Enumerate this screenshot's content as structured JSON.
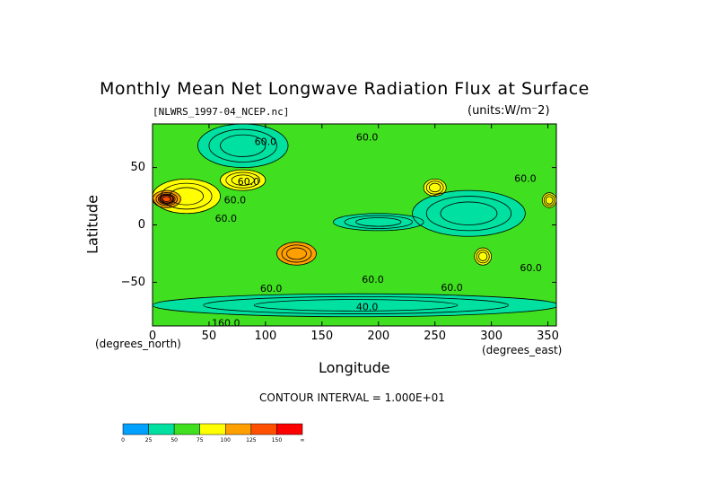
{
  "chart_data": {
    "type": "heatmap",
    "title": "Monthly Mean Net Longwave Radiation Flux at Surface",
    "subtitle_file": "[NLWRS_1997-04_NCEP.nc]",
    "units": "(units:W/m^2)",
    "units_display": "(units:W/m⁻2)",
    "xlabel": "Longitude",
    "ylabel": "Latitude",
    "x_unit_label": "(degrees_east)",
    "y_unit_label": "(degrees_north)",
    "xlim": [
      0,
      357.5
    ],
    "ylim": [
      -88,
      88
    ],
    "x_ticks": [
      0,
      50,
      100,
      150,
      200,
      250,
      300,
      350
    ],
    "y_ticks": [
      -50,
      0,
      50
    ],
    "x_tick_labels": [
      "0",
      "50",
      "100",
      "150",
      "200",
      "250",
      "300",
      "350"
    ],
    "y_tick_labels": [
      "−50",
      "0",
      "50"
    ],
    "contour_interval_text": "CONTOUR INTERVAL = 1.000E+01",
    "contour_labels": [
      {
        "text": "60.0",
        "lon": 65,
        "lat": 5
      },
      {
        "text": "60.0",
        "lon": 100,
        "lat": 72
      },
      {
        "text": "60.0",
        "lon": 190,
        "lat": 76
      },
      {
        "text": "60.0",
        "lon": 330,
        "lat": 40
      },
      {
        "text": "60.0",
        "lon": 195,
        "lat": -48
      },
      {
        "text": "60.0",
        "lon": 265,
        "lat": -55
      },
      {
        "text": "60.0",
        "lon": 335,
        "lat": -38
      },
      {
        "text": "60.0",
        "lon": 105,
        "lat": -56
      },
      {
        "text": "40.0",
        "lon": 190,
        "lat": -72
      },
      {
        "text": "160.0",
        "lon": 65,
        "lat": -86
      },
      {
        "text": "60.0",
        "lon": 73,
        "lat": 21
      },
      {
        "text": "60.0",
        "lon": 85,
        "lat": 37
      }
    ],
    "colorbar": {
      "levels": [
        "0",
        "25",
        "50",
        "75",
        "100",
        "125",
        "150",
        "∞"
      ],
      "colors": [
        "#00a0ff",
        "#00e0a0",
        "#40e020",
        "#ffff00",
        "#ffa000",
        "#ff5000",
        "#ff0000"
      ]
    },
    "field_classes": [
      {
        "range": "0-25",
        "color": "#00a0ff"
      },
      {
        "range": "25-50",
        "color": "#00e0a0"
      },
      {
        "range": "50-75",
        "color": "#40e020"
      },
      {
        "range": "75-100",
        "color": "#ffff00"
      },
      {
        "range": "100-125",
        "color": "#ffa000"
      },
      {
        "range": "125-150",
        "color": "#ff5000"
      },
      {
        "range": "150+",
        "color": "#ff0000"
      }
    ],
    "regions": [
      {
        "class": 1,
        "lon_range": [
          40,
          120
        ],
        "lat_range": [
          50,
          88
        ]
      },
      {
        "class": 1,
        "lon_range": [
          230,
          330
        ],
        "lat_range": [
          -10,
          30
        ]
      },
      {
        "class": 1,
        "lon_range": [
          0,
          360
        ],
        "lat_range": [
          -80,
          -60
        ]
      },
      {
        "class": 1,
        "lon_range": [
          160,
          240
        ],
        "lat_range": [
          -5,
          10
        ]
      },
      {
        "class": 3,
        "lon_range": [
          0,
          60
        ],
        "lat_range": [
          10,
          40
        ]
      },
      {
        "class": 4,
        "lon_range": [
          0,
          25
        ],
        "lat_range": [
          15,
          30
        ]
      },
      {
        "class": 5,
        "lon_range": [
          5,
          20
        ],
        "lat_range": [
          18,
          27
        ]
      },
      {
        "class": 4,
        "lon_range": [
          110,
          145
        ],
        "lat_range": [
          -35,
          -15
        ]
      },
      {
        "class": 3,
        "lon_range": [
          60,
          100
        ],
        "lat_range": [
          30,
          48
        ]
      },
      {
        "class": 3,
        "lon_range": [
          240,
          260
        ],
        "lat_range": [
          25,
          40
        ]
      },
      {
        "class": 3,
        "lon_range": [
          345,
          357.5
        ],
        "lat_range": [
          15,
          28
        ]
      },
      {
        "class": 3,
        "lon_range": [
          285,
          300
        ],
        "lat_range": [
          -35,
          -20
        ]
      }
    ]
  }
}
